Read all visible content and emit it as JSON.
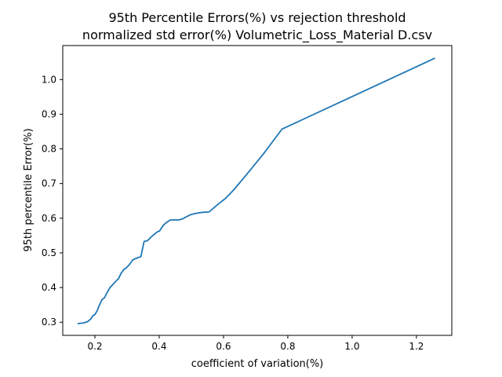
{
  "chart_data": {
    "type": "line",
    "title_lines": [
      "95th Percentile Errors(%) vs rejection threshold",
      "normalized std error(%) Volumetric_Loss_Material D.csv"
    ],
    "xlabel": "coefficient of variation(%)",
    "ylabel": "95th percentile Error(%)",
    "xlim": [
      0.1,
      1.31
    ],
    "ylim": [
      0.262,
      1.098
    ],
    "xticks": [
      {
        "value": 0.2,
        "label": "0.2"
      },
      {
        "value": 0.4,
        "label": "0.4"
      },
      {
        "value": 0.6,
        "label": "0.6"
      },
      {
        "value": 0.8,
        "label": "0.8"
      },
      {
        "value": 1.0,
        "label": "1.0"
      },
      {
        "value": 1.2,
        "label": "1.2"
      }
    ],
    "yticks": [
      {
        "value": 0.3,
        "label": "0.3"
      },
      {
        "value": 0.4,
        "label": "0.4"
      },
      {
        "value": 0.5,
        "label": "0.5"
      },
      {
        "value": 0.6,
        "label": "0.6"
      },
      {
        "value": 0.7,
        "label": "0.7"
      },
      {
        "value": 0.8,
        "label": "0.8"
      },
      {
        "value": 0.9,
        "label": "0.9"
      },
      {
        "value": 1.0,
        "label": "1.0"
      }
    ],
    "grid": false,
    "legend": "none",
    "series": [
      {
        "color": "#1f77b4",
        "x": [
          0.148,
          0.165,
          0.178,
          0.188,
          0.194,
          0.2,
          0.207,
          0.213,
          0.222,
          0.23,
          0.237,
          0.247,
          0.258,
          0.268,
          0.273,
          0.282,
          0.291,
          0.298,
          0.308,
          0.318,
          0.328,
          0.333,
          0.343,
          0.353,
          0.363,
          0.368,
          0.375,
          0.384,
          0.393,
          0.401,
          0.413,
          0.423,
          0.435,
          0.448,
          0.462,
          0.475,
          0.484,
          0.5,
          0.515,
          0.535,
          0.555,
          0.58,
          0.606,
          0.632,
          0.67,
          0.722,
          0.782,
          1.256
        ],
        "y": [
          0.296,
          0.298,
          0.302,
          0.31,
          0.319,
          0.322,
          0.333,
          0.347,
          0.365,
          0.371,
          0.384,
          0.4,
          0.411,
          0.421,
          0.425,
          0.442,
          0.453,
          0.457,
          0.467,
          0.48,
          0.484,
          0.486,
          0.489,
          0.533,
          0.535,
          0.539,
          0.546,
          0.553,
          0.56,
          0.563,
          0.58,
          0.588,
          0.595,
          0.595,
          0.595,
          0.599,
          0.604,
          0.611,
          0.614,
          0.617,
          0.618,
          0.638,
          0.657,
          0.682,
          0.724,
          0.783,
          0.857,
          1.061
        ]
      }
    ]
  }
}
